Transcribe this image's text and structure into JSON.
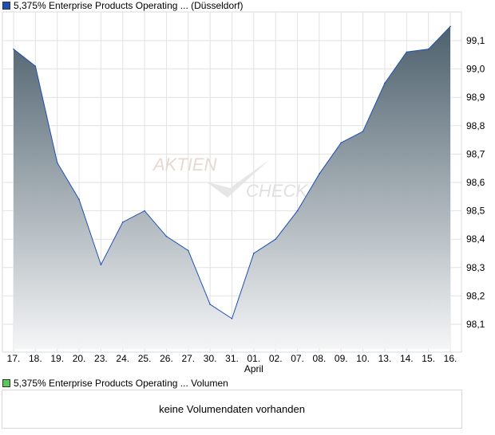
{
  "chart_data": {
    "type": "area",
    "title": "5,375% Enterprise Products Operating ... (Düsseldorf)",
    "categories": [
      "17.",
      "18.",
      "19.",
      "20.",
      "23.",
      "24.",
      "25.",
      "26.",
      "27.",
      "30.",
      "31.",
      "01.",
      "02.",
      "07.",
      "08.",
      "09.",
      "10.",
      "13.",
      "14.",
      "15.",
      "16."
    ],
    "values": [
      99.07,
      99.01,
      98.67,
      98.54,
      98.31,
      98.46,
      98.5,
      98.41,
      98.36,
      98.17,
      98.12,
      98.35,
      98.4,
      98.5,
      98.63,
      98.74,
      98.78,
      98.95,
      99.06,
      99.07,
      99.15
    ],
    "month_label": "April",
    "y_ticks": [
      "98,1",
      "98,2",
      "98,3",
      "98,4",
      "98,5",
      "98,6",
      "98,7",
      "98,8",
      "98,9",
      "99,0",
      "99,1"
    ],
    "ylim": [
      98.0,
      99.2
    ],
    "grid": true,
    "series_color": "#1f4fb5",
    "fill_top": "#475b68",
    "fill_bottom": "#f4f5f6"
  },
  "volume": {
    "legend": "5,375% Enterprise Products Operating ... Volumen",
    "legend_color": "#5cc85c",
    "message": "keine Volumendaten vorhanden"
  },
  "watermark": {
    "line1": "AKTIEN",
    "line2": "CHECK"
  }
}
